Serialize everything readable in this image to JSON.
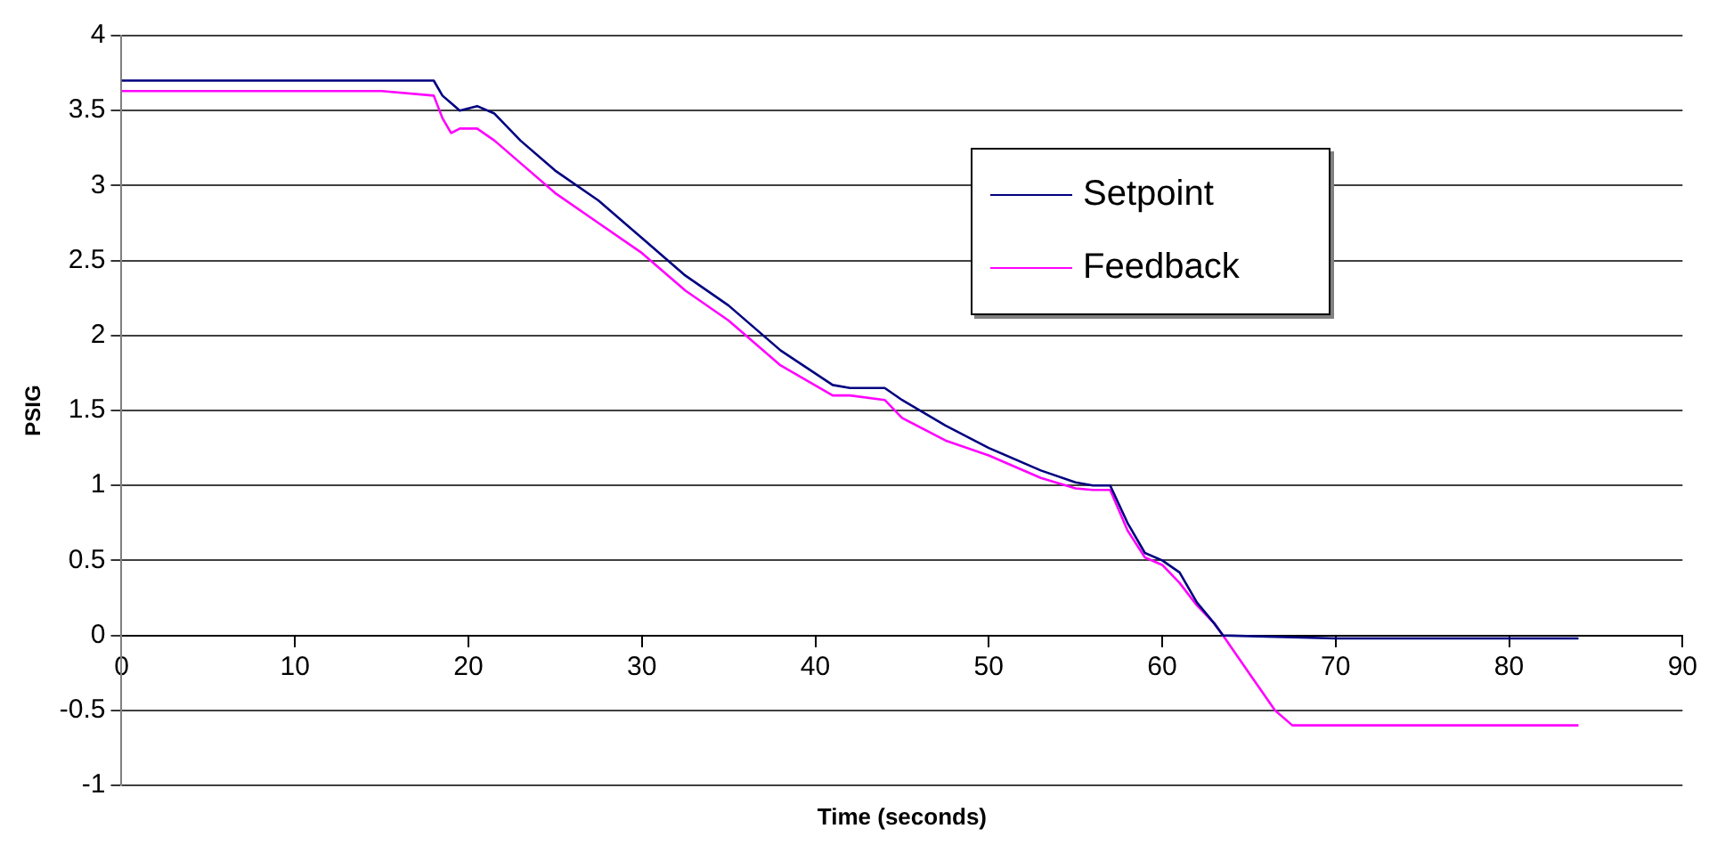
{
  "chart_data": {
    "type": "line",
    "xlabel": "Time (seconds)",
    "ylabel": "PSIG",
    "xlim": [
      0,
      90
    ],
    "xticks": [
      0,
      10,
      20,
      30,
      40,
      50,
      60,
      70,
      80,
      90
    ],
    "ylim": [
      -1,
      4
    ],
    "yticks": [
      -1,
      -0.5,
      0,
      0.5,
      1,
      1.5,
      2,
      2.5,
      3,
      3.5,
      4
    ],
    "grid": "y",
    "legend": "top right",
    "marker": "none",
    "line_style": "solid",
    "series": [
      {
        "name": "Setpoint",
        "color": "#000080",
        "x": [
          0,
          5,
          10,
          15,
          18,
          18.5,
          19.5,
          20.5,
          21.5,
          23,
          25,
          27.5,
          30,
          32.5,
          35,
          38,
          41,
          42,
          44,
          45,
          47.5,
          50,
          53,
          55,
          56,
          57,
          58,
          59,
          60,
          61,
          62,
          63,
          63.5,
          70,
          80,
          84
        ],
        "values": [
          3.7,
          3.7,
          3.7,
          3.7,
          3.7,
          3.6,
          3.5,
          3.53,
          3.48,
          3.3,
          3.1,
          2.9,
          2.65,
          2.4,
          2.2,
          1.9,
          1.67,
          1.65,
          1.65,
          1.57,
          1.4,
          1.25,
          1.1,
          1.02,
          1.0,
          1.0,
          0.75,
          0.55,
          0.5,
          0.42,
          0.22,
          0.08,
          0,
          -0.02,
          -0.02,
          -0.02
        ]
      },
      {
        "name": "Feedback",
        "color": "#ff00ff",
        "x": [
          0,
          5,
          10,
          15,
          18,
          18.5,
          19,
          19.5,
          20.5,
          21.5,
          23,
          25,
          27.5,
          30,
          32.5,
          35,
          38,
          41,
          42,
          44,
          45,
          47.5,
          50,
          53,
          55,
          56,
          57,
          58,
          59,
          60,
          61,
          62,
          63,
          63.5,
          65,
          66.5,
          67.5,
          70,
          80,
          84
        ],
        "values": [
          3.63,
          3.63,
          3.63,
          3.63,
          3.6,
          3.45,
          3.35,
          3.38,
          3.38,
          3.3,
          3.15,
          2.95,
          2.75,
          2.55,
          2.3,
          2.1,
          1.8,
          1.6,
          1.6,
          1.57,
          1.45,
          1.3,
          1.2,
          1.05,
          0.98,
          0.97,
          0.97,
          0.7,
          0.52,
          0.47,
          0.35,
          0.2,
          0.08,
          0,
          -0.25,
          -0.5,
          -0.6,
          -0.6,
          -0.6,
          -0.6
        ]
      }
    ]
  }
}
